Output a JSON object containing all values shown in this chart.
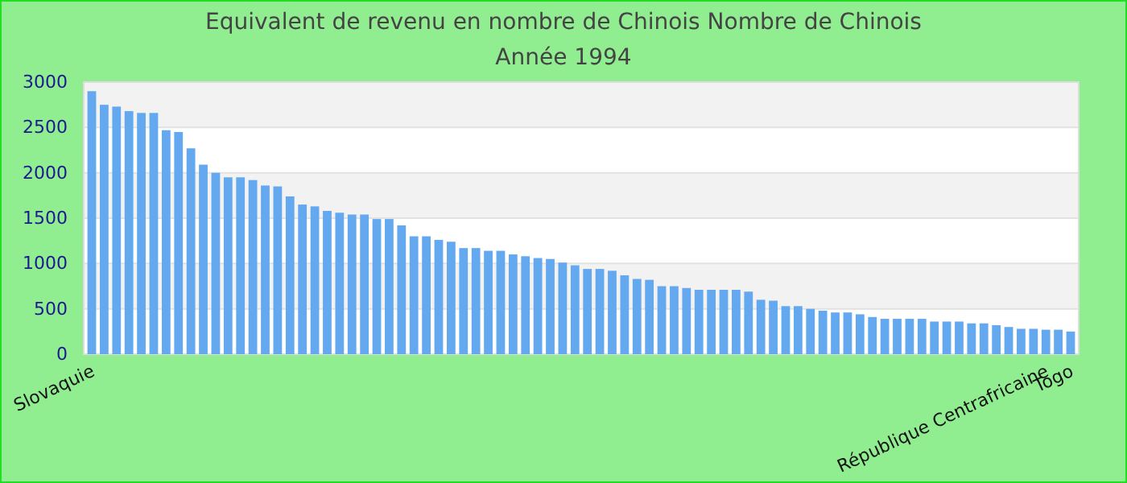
{
  "chart_data": {
    "type": "bar",
    "title": "Equivalent de revenu en nombre de Chinois  Nombre de Chinois",
    "subtitle": "Année 1994",
    "categories": [
      "Slovaquie",
      null,
      null,
      null,
      null,
      null,
      null,
      null,
      null,
      null,
      null,
      null,
      null,
      null,
      null,
      null,
      null,
      null,
      null,
      null,
      null,
      null,
      null,
      null,
      null,
      null,
      null,
      null,
      null,
      null,
      null,
      null,
      null,
      null,
      null,
      null,
      null,
      null,
      null,
      null,
      null,
      null,
      null,
      null,
      null,
      null,
      null,
      null,
      null,
      null,
      null,
      null,
      null,
      null,
      null,
      null,
      null,
      null,
      null,
      null,
      null,
      null,
      null,
      null,
      null,
      null,
      null,
      null,
      null,
      null,
      null,
      null,
      null,
      null,
      null,
      null,
      null,
      "République Centrafricaine",
      null,
      "Togo"
    ],
    "values": [
      2900,
      2750,
      2730,
      2680,
      2660,
      2660,
      2470,
      2450,
      2270,
      2090,
      2000,
      1950,
      1950,
      1920,
      1860,
      1850,
      1740,
      1650,
      1630,
      1580,
      1560,
      1540,
      1540,
      1490,
      1490,
      1420,
      1300,
      1300,
      1260,
      1240,
      1170,
      1170,
      1140,
      1140,
      1100,
      1080,
      1060,
      1050,
      1010,
      980,
      940,
      940,
      920,
      870,
      830,
      820,
      750,
      750,
      730,
      710,
      710,
      710,
      710,
      690,
      600,
      590,
      530,
      530,
      500,
      480,
      460,
      460,
      440,
      410,
      390,
      390,
      390,
      390,
      360,
      360,
      360,
      340,
      340,
      320,
      300,
      280,
      280,
      270,
      270,
      250
    ],
    "color": "#64a8f0",
    "ylim": [
      0,
      3000
    ],
    "yticks": [
      0,
      500,
      1000,
      1500,
      2000,
      2500,
      3000
    ],
    "grid": "y"
  }
}
